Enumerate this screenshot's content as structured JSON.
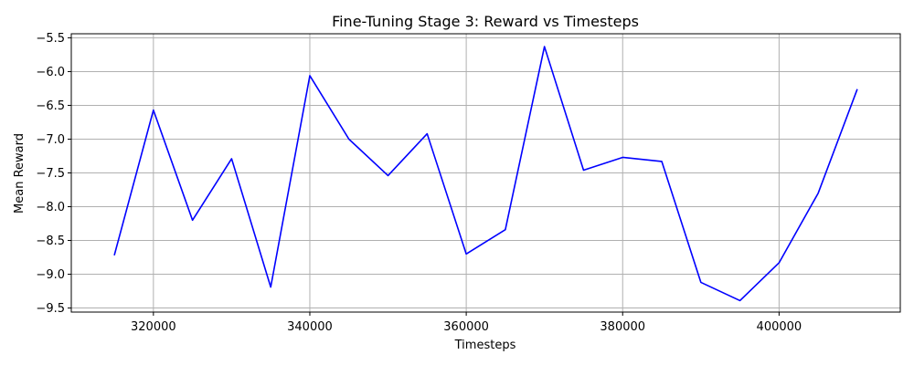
{
  "chart_data": {
    "type": "line",
    "title": "Fine-Tuning Stage 3: Reward vs Timesteps",
    "xlabel": "Timesteps",
    "ylabel": "Mean Reward",
    "xlim": [
      309500,
      415500
    ],
    "ylim": [
      -9.56,
      -5.44
    ],
    "xticks": [
      320000,
      340000,
      360000,
      380000,
      400000
    ],
    "xtick_labels": [
      "320000",
      "340000",
      "360000",
      "380000",
      "400000"
    ],
    "yticks": [
      -5.5,
      -6.0,
      -6.5,
      -7.0,
      -7.5,
      -8.0,
      -8.5,
      -9.0,
      -9.5
    ],
    "ytick_labels": [
      "−5.5",
      "−6.0",
      "−6.5",
      "−7.0",
      "−7.5",
      "−8.0",
      "−8.5",
      "−9.0",
      "−9.5"
    ],
    "grid": true,
    "line_color": "#0000ff",
    "series": [
      {
        "x": [
          315000,
          320000,
          325000,
          330000,
          335000,
          340000,
          345000,
          350000,
          355000,
          360000,
          365000,
          370000,
          375000,
          380000,
          385000,
          390000,
          395000,
          400000,
          405000,
          410000
        ],
        "values": [
          -8.72,
          -6.57,
          -8.2,
          -7.29,
          -9.19,
          -6.06,
          -7.0,
          -7.54,
          -6.92,
          -8.7,
          -8.34,
          -5.63,
          -7.46,
          -7.27,
          -7.33,
          -9.12,
          -9.39,
          -8.83,
          -7.8,
          -6.26
        ]
      }
    ]
  }
}
